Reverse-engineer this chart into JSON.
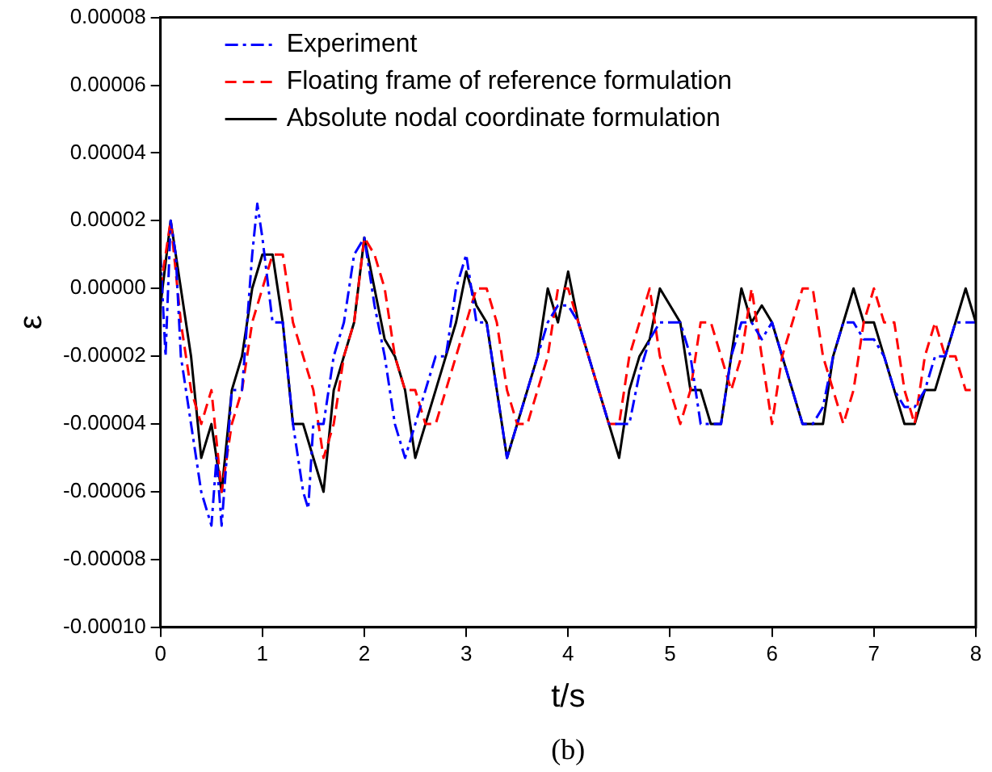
{
  "chart_data": {
    "type": "line",
    "xlabel": "t/s",
    "ylabel": "ε",
    "annotations": [
      "(b)"
    ],
    "xlim": [
      0,
      8
    ],
    "xticks": [
      0,
      1,
      2,
      3,
      4,
      5,
      6,
      7,
      8
    ],
    "ylim": [
      -0.0001,
      8e-05
    ],
    "yticks": [
      {
        "value": -0.0001,
        "label": "-0.00010"
      },
      {
        "value": -8e-05,
        "label": "-0.00008"
      },
      {
        "value": -6e-05,
        "label": "-0.00006"
      },
      {
        "value": -4e-05,
        "label": "-0.00004"
      },
      {
        "value": -2e-05,
        "label": "-0.00002"
      },
      {
        "value": 0,
        "label": "0.00000"
      },
      {
        "value": 2e-05,
        "label": "0.00002"
      },
      {
        "value": 4e-05,
        "label": "0.00004"
      },
      {
        "value": 6e-05,
        "label": "0.00006"
      },
      {
        "value": 8e-05,
        "label": "0.00008"
      }
    ],
    "grid": false,
    "legend": "top left",
    "marker": "none",
    "series": [
      {
        "name": "Experiment",
        "color": "#0000ff",
        "line_style": "dashdot",
        "x": [
          0,
          0.05,
          0.1,
          0.15,
          0.2,
          0.3,
          0.4,
          0.5,
          0.55,
          0.6,
          0.7,
          0.8,
          0.9,
          0.95,
          1.0,
          1.1,
          1.2,
          1.3,
          1.4,
          1.45,
          1.5,
          1.6,
          1.7,
          1.8,
          1.9,
          2.0,
          2.1,
          2.2,
          2.3,
          2.4,
          2.5,
          2.6,
          2.7,
          2.8,
          2.9,
          3.0,
          3.1,
          3.2,
          3.3,
          3.4,
          3.5,
          3.6,
          3.7,
          3.8,
          3.9,
          4.0,
          4.1,
          4.2,
          4.3,
          4.4,
          4.5,
          4.6,
          4.7,
          4.8,
          4.9,
          5.0,
          5.1,
          5.2,
          5.3,
          5.4,
          5.5,
          5.6,
          5.7,
          5.8,
          5.9,
          6.0,
          6.1,
          6.2,
          6.3,
          6.4,
          6.5,
          6.6,
          6.7,
          6.8,
          6.9,
          7.0,
          7.1,
          7.2,
          7.3,
          7.4,
          7.5,
          7.6,
          7.7,
          7.8,
          7.9,
          8.0
        ],
        "values": [
          1e-05,
          -2e-05,
          2e-05,
          1e-05,
          -2e-05,
          -4e-05,
          -6e-05,
          -7e-05,
          -5e-05,
          -7e-05,
          -3e-05,
          -3e-05,
          1e-05,
          2.5e-05,
          1.5e-05,
          -1e-05,
          -1e-05,
          -4e-05,
          -6e-05,
          -6.5e-05,
          -4e-05,
          -4e-05,
          -2e-05,
          -1e-05,
          1e-05,
          1.5e-05,
          -5e-06,
          -2e-05,
          -4e-05,
          -5e-05,
          -4e-05,
          -3e-05,
          -2e-05,
          -2e-05,
          0,
          1e-05,
          -1e-05,
          -1e-05,
          -3e-05,
          -5e-05,
          -4e-05,
          -3e-05,
          -2e-05,
          -1e-05,
          -5e-06,
          -5e-06,
          -1e-05,
          -2e-05,
          -3e-05,
          -4e-05,
          -4e-05,
          -4e-05,
          -2.5e-05,
          -1.5e-05,
          -1e-05,
          -1e-05,
          -1e-05,
          -2e-05,
          -4e-05,
          -4e-05,
          -4e-05,
          -2e-05,
          -1e-05,
          -1e-05,
          -1.5e-05,
          -1e-05,
          -2e-05,
          -3e-05,
          -4e-05,
          -4e-05,
          -3.5e-05,
          -2e-05,
          -1e-05,
          -1e-05,
          -1.5e-05,
          -1.5e-05,
          -2e-05,
          -3e-05,
          -3.5e-05,
          -3.5e-05,
          -3e-05,
          -2e-05,
          -2e-05,
          -1e-05,
          -1e-05,
          -1e-05
        ]
      },
      {
        "name": "Floating frame of reference formulation",
        "color": "#ff0000",
        "line_style": "dashed",
        "x": [
          0,
          0.1,
          0.2,
          0.3,
          0.4,
          0.5,
          0.6,
          0.7,
          0.8,
          0.9,
          1.0,
          1.1,
          1.2,
          1.3,
          1.4,
          1.5,
          1.6,
          1.7,
          1.8,
          1.9,
          2.0,
          2.1,
          2.2,
          2.3,
          2.4,
          2.5,
          2.6,
          2.7,
          2.8,
          2.9,
          3.0,
          3.1,
          3.2,
          3.3,
          3.4,
          3.5,
          3.6,
          3.7,
          3.8,
          3.9,
          4.0,
          4.1,
          4.2,
          4.3,
          4.4,
          4.5,
          4.6,
          4.7,
          4.8,
          4.9,
          5.0,
          5.1,
          5.2,
          5.3,
          5.4,
          5.5,
          5.6,
          5.7,
          5.8,
          5.9,
          6.0,
          6.1,
          6.2,
          6.3,
          6.4,
          6.5,
          6.6,
          6.7,
          6.8,
          6.9,
          7.0,
          7.1,
          7.2,
          7.3,
          7.4,
          7.5,
          7.6,
          7.7,
          7.8,
          7.9,
          8.0
        ],
        "values": [
          0,
          2e-05,
          -1e-05,
          -3e-05,
          -4e-05,
          -3e-05,
          -6e-05,
          -4e-05,
          -3e-05,
          -1e-05,
          0,
          1e-05,
          1e-05,
          -1e-05,
          -2e-05,
          -3e-05,
          -5e-05,
          -4e-05,
          -2e-05,
          -1e-05,
          1.5e-05,
          1e-05,
          0,
          -2e-05,
          -3e-05,
          -3e-05,
          -4e-05,
          -4e-05,
          -3e-05,
          -2e-05,
          -1e-05,
          0,
          0,
          -1e-05,
          -3e-05,
          -4e-05,
          -4e-05,
          -3e-05,
          -2e-05,
          0,
          0,
          -1e-05,
          -2e-05,
          -3e-05,
          -4e-05,
          -4e-05,
          -2e-05,
          -1e-05,
          0,
          -2e-05,
          -3e-05,
          -4e-05,
          -3e-05,
          -1e-05,
          -1e-05,
          -2e-05,
          -3e-05,
          -2e-05,
          0,
          -2e-05,
          -4e-05,
          -2e-05,
          -1e-05,
          0,
          0,
          -2e-05,
          -3e-05,
          -4e-05,
          -3e-05,
          -1e-05,
          0,
          -1e-05,
          -1e-05,
          -3e-05,
          -4e-05,
          -2e-05,
          -1e-05,
          -2e-05,
          -2e-05,
          -3e-05,
          -3e-05
        ]
      },
      {
        "name": "Absolute nodal coordinate formulation",
        "color": "#000000",
        "line_style": "solid",
        "x": [
          0,
          0.1,
          0.2,
          0.3,
          0.4,
          0.5,
          0.6,
          0.7,
          0.8,
          0.9,
          1.0,
          1.1,
          1.2,
          1.3,
          1.4,
          1.5,
          1.6,
          1.7,
          1.8,
          1.9,
          2.0,
          2.1,
          2.2,
          2.3,
          2.4,
          2.5,
          2.6,
          2.7,
          2.8,
          2.9,
          3.0,
          3.1,
          3.2,
          3.3,
          3.4,
          3.5,
          3.6,
          3.7,
          3.8,
          3.9,
          4.0,
          4.1,
          4.2,
          4.3,
          4.4,
          4.5,
          4.6,
          4.7,
          4.8,
          4.9,
          5.0,
          5.1,
          5.2,
          5.3,
          5.4,
          5.5,
          5.6,
          5.7,
          5.8,
          5.9,
          6.0,
          6.1,
          6.2,
          6.3,
          6.4,
          6.5,
          6.6,
          6.7,
          6.8,
          6.9,
          7.0,
          7.1,
          7.2,
          7.3,
          7.4,
          7.5,
          7.6,
          7.7,
          7.8,
          7.9,
          8.0
        ],
        "values": [
          -5e-06,
          2e-05,
          0,
          -2e-05,
          -5e-05,
          -4e-05,
          -6e-05,
          -3e-05,
          -2e-05,
          0,
          1e-05,
          1e-05,
          -1e-05,
          -4e-05,
          -4e-05,
          -5e-05,
          -6e-05,
          -3e-05,
          -2e-05,
          -1e-05,
          1.5e-05,
          0,
          -1.5e-05,
          -2e-05,
          -3e-05,
          -5e-05,
          -4e-05,
          -3e-05,
          -2e-05,
          -1e-05,
          5e-06,
          -5e-06,
          -1e-05,
          -3e-05,
          -5e-05,
          -4e-05,
          -3e-05,
          -2e-05,
          0,
          -1e-05,
          5e-06,
          -1e-05,
          -2e-05,
          -3e-05,
          -4e-05,
          -5e-05,
          -3e-05,
          -2e-05,
          -1.5e-05,
          0,
          -5e-06,
          -1e-05,
          -3e-05,
          -3e-05,
          -4e-05,
          -4e-05,
          -2e-05,
          0,
          -1e-05,
          -5e-06,
          -1e-05,
          -2e-05,
          -3e-05,
          -4e-05,
          -4e-05,
          -4e-05,
          -2e-05,
          -1e-05,
          0,
          -1e-05,
          -1e-05,
          -2e-05,
          -3e-05,
          -4e-05,
          -4e-05,
          -3e-05,
          -3e-05,
          -2e-05,
          -1e-05,
          0,
          -1e-05
        ]
      }
    ]
  }
}
